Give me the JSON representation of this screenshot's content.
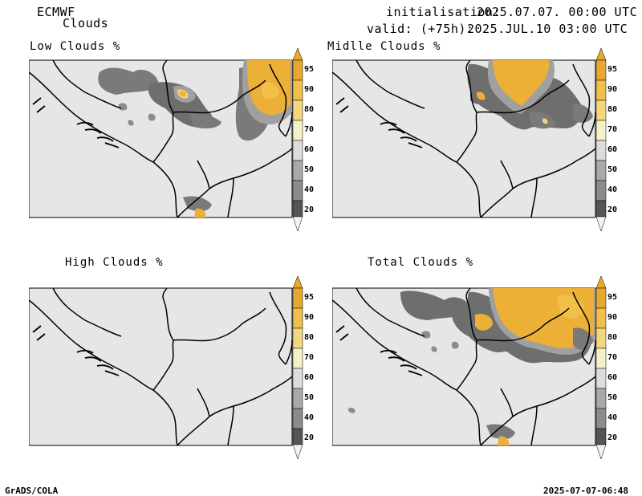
{
  "header": {
    "model": "ECMWF",
    "parameter": "Clouds",
    "init_label": "initialisation:",
    "init_value": "2025.07.07. 00:00 UTC",
    "valid_label": "valid: (+75h):",
    "valid_value": "2025.JUL.10 03:00 UTC"
  },
  "panels": [
    {
      "title": "Low Clouds %"
    },
    {
      "title": "Midlle Clouds %"
    },
    {
      "title": "High Clouds %"
    },
    {
      "title": "Total Clouds %"
    }
  ],
  "colorbar": {
    "levels": [
      "95",
      "90",
      "80",
      "70",
      "60",
      "50",
      "40",
      "20"
    ],
    "colors": [
      "#e8a82e",
      "#f0c04a",
      "#f4d77c",
      "#f6f0c8",
      "#dcdcdc",
      "#a9a9a9",
      "#8c8c8c",
      "#555555",
      "#f2f2f2"
    ]
  },
  "colors": {
    "background_field": "#e6e6e6",
    "cloud_dark": "#6e6e6e",
    "cloud_mid": "#a0a0a0",
    "cloud_orange": "#ecb037",
    "cloud_light_orange": "#f4d27a",
    "border": "#000000"
  },
  "footer": {
    "left": "GrADS/COLA",
    "right": "2025-07-07-06:48"
  }
}
